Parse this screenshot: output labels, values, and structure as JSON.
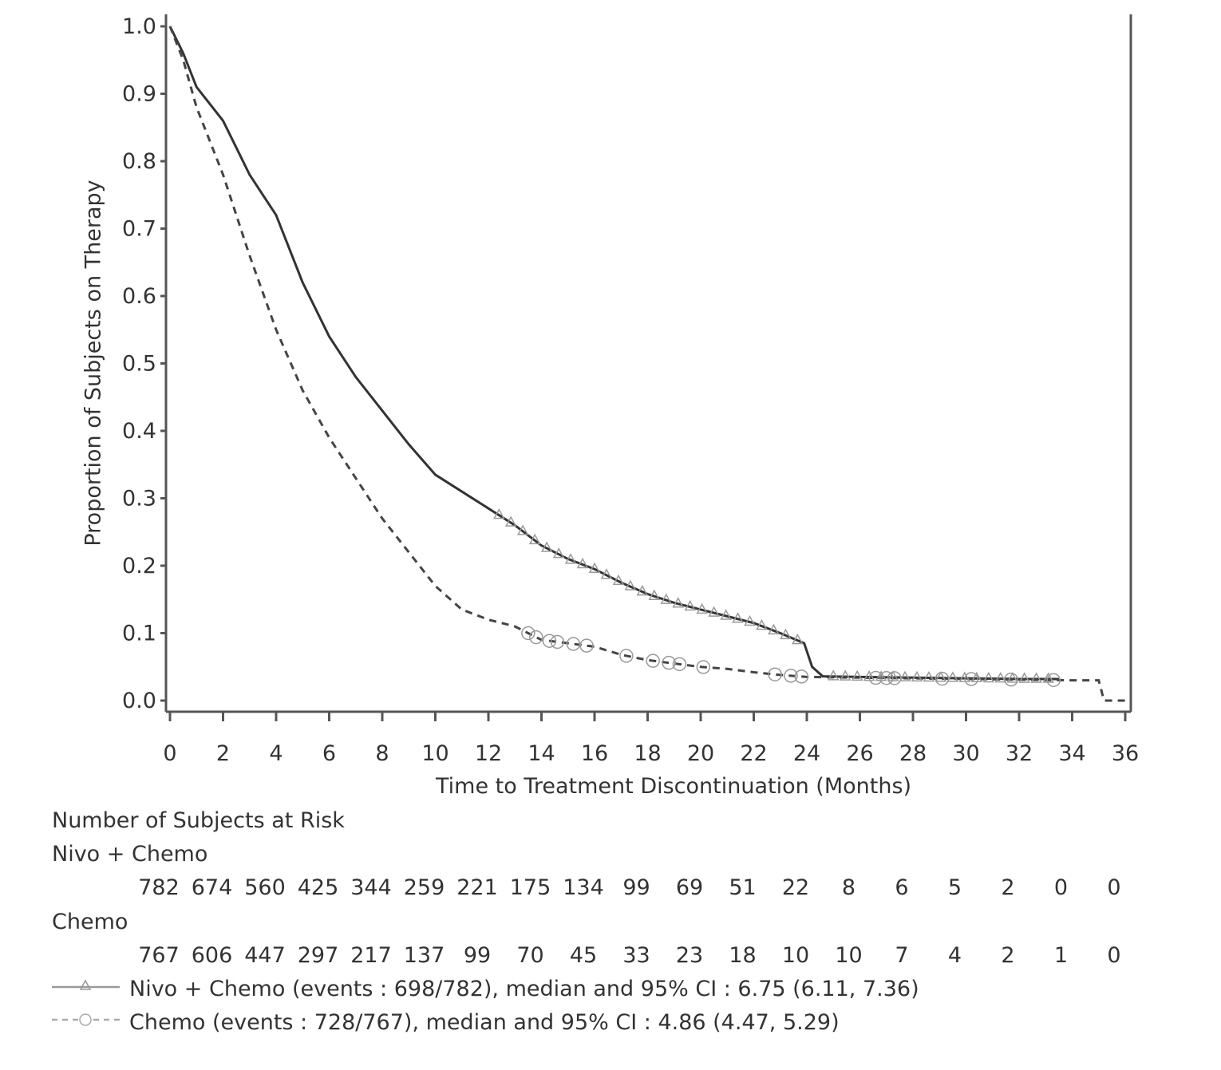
{
  "chart_data": {
    "type": "line",
    "subtype": "kaplan-meier",
    "title": "",
    "xlabel": "Time to Treatment Discontinuation (Months)",
    "ylabel": "Proportion of Subjects on Therapy",
    "xlim": [
      0,
      36
    ],
    "ylim": [
      0.0,
      1.0
    ],
    "xticks": [
      "0",
      "2",
      "4",
      "6",
      "8",
      "10",
      "12",
      "14",
      "16",
      "18",
      "20",
      "22",
      "24",
      "26",
      "28",
      "30",
      "32",
      "34",
      "36"
    ],
    "yticks": [
      "0.0",
      "0.1",
      "0.2",
      "0.3",
      "0.4",
      "0.5",
      "0.6",
      "0.7",
      "0.8",
      "0.9",
      "1.0"
    ],
    "grid": false,
    "series": [
      {
        "name": "Nivo + Chemo",
        "line_style": "solid",
        "censor_marker": "triangle",
        "events": "698/782",
        "median": 6.75,
        "ci95": [
          6.11,
          7.36
        ],
        "x": [
          0,
          0.5,
          1,
          2,
          3,
          4,
          5,
          6,
          7,
          8,
          9,
          10,
          11,
          12,
          13,
          14,
          15,
          16,
          17,
          18,
          19,
          20,
          21,
          22,
          23,
          23.9,
          24.2,
          24.6,
          26,
          28,
          30,
          32,
          33.5
        ],
        "y": [
          1.0,
          0.96,
          0.91,
          0.86,
          0.78,
          0.72,
          0.62,
          0.54,
          0.48,
          0.43,
          0.38,
          0.335,
          0.31,
          0.285,
          0.26,
          0.23,
          0.21,
          0.195,
          0.175,
          0.158,
          0.145,
          0.135,
          0.125,
          0.115,
          0.1,
          0.085,
          0.05,
          0.036,
          0.035,
          0.034,
          0.033,
          0.032,
          0.032
        ]
      },
      {
        "name": "Chemo",
        "line_style": "dashed",
        "censor_marker": "circle",
        "events": "728/767",
        "median": 4.86,
        "ci95": [
          4.47,
          5.29
        ],
        "x": [
          0,
          0.5,
          1,
          2,
          3,
          4,
          5,
          6,
          7,
          8,
          9,
          10,
          11,
          12,
          13,
          13.5,
          14,
          15,
          16,
          17,
          18,
          19,
          20,
          21,
          22,
          23,
          24,
          26,
          28,
          30,
          32,
          34,
          35,
          35.2,
          36
        ],
        "y": [
          1.0,
          0.95,
          0.88,
          0.78,
          0.66,
          0.55,
          0.46,
          0.39,
          0.33,
          0.27,
          0.22,
          0.17,
          0.135,
          0.12,
          0.11,
          0.1,
          0.09,
          0.085,
          0.08,
          0.068,
          0.06,
          0.055,
          0.05,
          0.047,
          0.042,
          0.038,
          0.035,
          0.034,
          0.033,
          0.032,
          0.031,
          0.03,
          0.03,
          0.0,
          0.0
        ]
      }
    ],
    "risk_table": {
      "title": "Number of Subjects at Risk",
      "timepoints": [
        0,
        2,
        4,
        6,
        8,
        10,
        12,
        14,
        16,
        18,
        20,
        22,
        24,
        26,
        28,
        30,
        32,
        34,
        36
      ],
      "rows": [
        {
          "label": "Nivo + Chemo",
          "values": [
            782,
            674,
            560,
            425,
            344,
            259,
            221,
            175,
            134,
            99,
            69,
            51,
            22,
            8,
            6,
            5,
            2,
            0,
            0
          ]
        },
        {
          "label": "Chemo",
          "values": [
            767,
            606,
            447,
            297,
            217,
            137,
            99,
            70,
            45,
            33,
            23,
            18,
            10,
            10,
            7,
            4,
            2,
            1,
            0
          ]
        }
      ]
    },
    "legend": [
      {
        "text": "Nivo + Chemo (events : 698/782), median and 95% CI : 6.75 (6.11, 7.36)",
        "style": "solid-triangle"
      },
      {
        "text": "Chemo (events : 728/767), median and 95% CI : 4.86 (4.47, 5.29)",
        "style": "dashed-circle"
      }
    ],
    "legend_position": "bottom"
  },
  "labels": {
    "xlabel": "Time to Treatment Discontinuation (Months)",
    "ylabel": "Proportion of Subjects on Therapy",
    "risk_title": "Number of Subjects at Risk",
    "risk_nivo": "Nivo + Chemo",
    "risk_chemo": "Chemo",
    "legend_nivo": "Nivo + Chemo (events : 698/782), median and 95% CI : 6.75 (6.11, 7.36)",
    "legend_chemo": "Chemo (events : 728/767), median and 95% CI : 4.86 (4.47, 5.29)"
  },
  "colors": {
    "axis": "#555555",
    "nivo_line": "#333333",
    "chemo_line": "#444444",
    "marker": "#999999"
  }
}
